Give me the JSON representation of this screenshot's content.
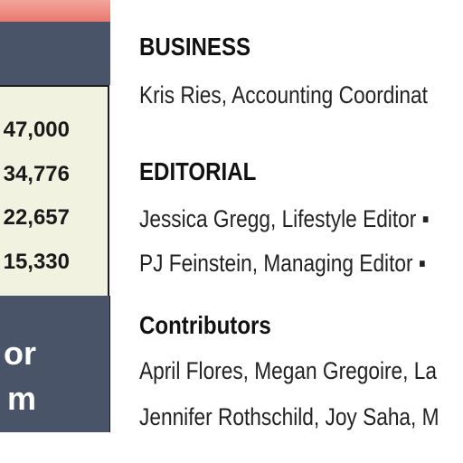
{
  "left_panel": {
    "stats": [
      "47,000",
      "34,776",
      "22,657",
      "15,330"
    ],
    "footer_lines": [
      "or",
      "m"
    ]
  },
  "right_column": {
    "business": {
      "heading": "BUSINESS",
      "lines": [
        "Kris Ries, Accounting Coordinat"
      ]
    },
    "editorial": {
      "heading": "EDITORIAL",
      "lines": [
        "Jessica Gregg, Lifestyle Editor ▪",
        "PJ Feinstein, Managing Editor ▪"
      ]
    },
    "contributors": {
      "heading": "Contributors",
      "lines": [
        "April Flores, Megan Gregoire, La",
        "Jennifer Rothschild, Joy Saha, M"
      ]
    }
  }
}
